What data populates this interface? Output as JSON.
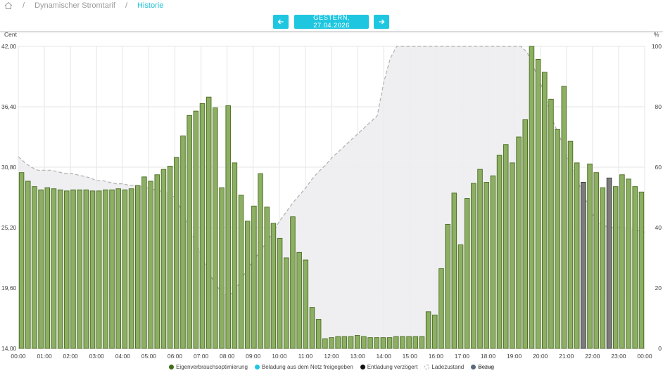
{
  "breadcrumb": {
    "home_icon": "home-icon",
    "items": [
      "Dynamischer Stromtarif",
      "Historie"
    ]
  },
  "nav": {
    "prev_icon": "arrow-left-icon",
    "date_label": "GESTERN, 27.04.2026",
    "next_icon": "arrow-right-icon"
  },
  "colors": {
    "accent": "#1fc6e0",
    "bar_green": "#8caf63",
    "bar_green_edge": "#4a6b1f",
    "bar_dark": "#7c7c7c"
  },
  "chart_data": {
    "type": "bar",
    "ylabel": "Cent",
    "y2label": "%",
    "ylim": [
      14.0,
      42.0
    ],
    "y2lim": [
      0,
      100
    ],
    "yticks": [
      "14,00",
      "19,60",
      "25,20",
      "30,80",
      "36,40",
      "42,00"
    ],
    "y2ticks": [
      "0",
      "20",
      "40",
      "60",
      "80",
      "100"
    ],
    "xticks": [
      "00:00",
      "01:00",
      "02:00",
      "03:00",
      "04:00",
      "05:00",
      "06:00",
      "07:00",
      "08:00",
      "09:00",
      "10:00",
      "11:00",
      "12:00",
      "13:00",
      "14:00",
      "15:00",
      "16:00",
      "17:00",
      "18:00",
      "19:00",
      "20:00",
      "21:00",
      "22:00",
      "23:00",
      "00:00"
    ],
    "legend": [
      {
        "label": "Eigenverbrauchsoptimierung",
        "color": "#3f6b1a"
      },
      {
        "label": "Beladung aus dem Netz freigegeben",
        "color": "#1fc6e0"
      },
      {
        "label": "Entladung verzögert",
        "color": "#111111"
      },
      {
        "label": "Ladezustand",
        "color": "#bbbbbb"
      },
      {
        "label": "Bezug",
        "color": "#5a6a7a"
      }
    ],
    "price_values": [
      30.3,
      29.5,
      29.0,
      28.7,
      28.9,
      28.8,
      28.7,
      28.6,
      28.7,
      28.7,
      28.7,
      28.6,
      28.6,
      28.7,
      28.7,
      28.8,
      28.7,
      28.8,
      29.1,
      29.9,
      29.5,
      30.1,
      30.6,
      30.9,
      31.7,
      33.7,
      35.6,
      36.0,
      36.7,
      37.3,
      36.3,
      28.9,
      36.5,
      31.2,
      28.2,
      25.8,
      27.2,
      30.2,
      27.1,
      25.6,
      24.2,
      22.4,
      26.2,
      22.9,
      22.2,
      17.8,
      16.7,
      14.9,
      15.0,
      15.1,
      15.1,
      15.1,
      15.2,
      15.1,
      15.0,
      15.0,
      15.0,
      15.0,
      15.1,
      15.1,
      15.1,
      15.1,
      15.1,
      17.4,
      17.1,
      21.4,
      25.5,
      28.4,
      23.6,
      27.9,
      29.3,
      30.6,
      29.4,
      30.0,
      31.9,
      32.9,
      31.2,
      33.6,
      35.2,
      42.0,
      40.8,
      39.6,
      37.1,
      34.3,
      38.3,
      33.2,
      31.2,
      29.4,
      31.1,
      30.3,
      28.9,
      29.8,
      29.0,
      30.1,
      29.7,
      29.0,
      28.5
    ],
    "dark_bar_indices": [
      87,
      91
    ],
    "soc_values": [
      63.5,
      61.5,
      60.0,
      59.0,
      59.0,
      59.0,
      58.5,
      58.0,
      58.0,
      57.5,
      57.0,
      56.5,
      55.5,
      55.5,
      55.0,
      54.5,
      54.5,
      54.0,
      54.0,
      53.5,
      53.0,
      52.5,
      52.0,
      51.5,
      50.0,
      46.0,
      41.0,
      36.0,
      31.0,
      26.0,
      22.0,
      19.0,
      17.5,
      18.5,
      22.0,
      26.0,
      29.0,
      32.0,
      35.0,
      38.5,
      42.0,
      45.0,
      48.0,
      50.5,
      53.0,
      56.0,
      58.5,
      60.5,
      63.0,
      65.0,
      67.0,
      69.0,
      71.0,
      73.0,
      75.0,
      77.0,
      88.0,
      96.0,
      100,
      100,
      100,
      100,
      100,
      100,
      100,
      100,
      100,
      100,
      100,
      100,
      100,
      100,
      100,
      100,
      100,
      100,
      100,
      100,
      98.0,
      93.0,
      88.0,
      82.0,
      75.0,
      70.0,
      64.0,
      59.0,
      54.0,
      49.0,
      44.5,
      41.5,
      40.5,
      40.0,
      40.0,
      40.0,
      39.5,
      39.0,
      38.5
    ]
  }
}
